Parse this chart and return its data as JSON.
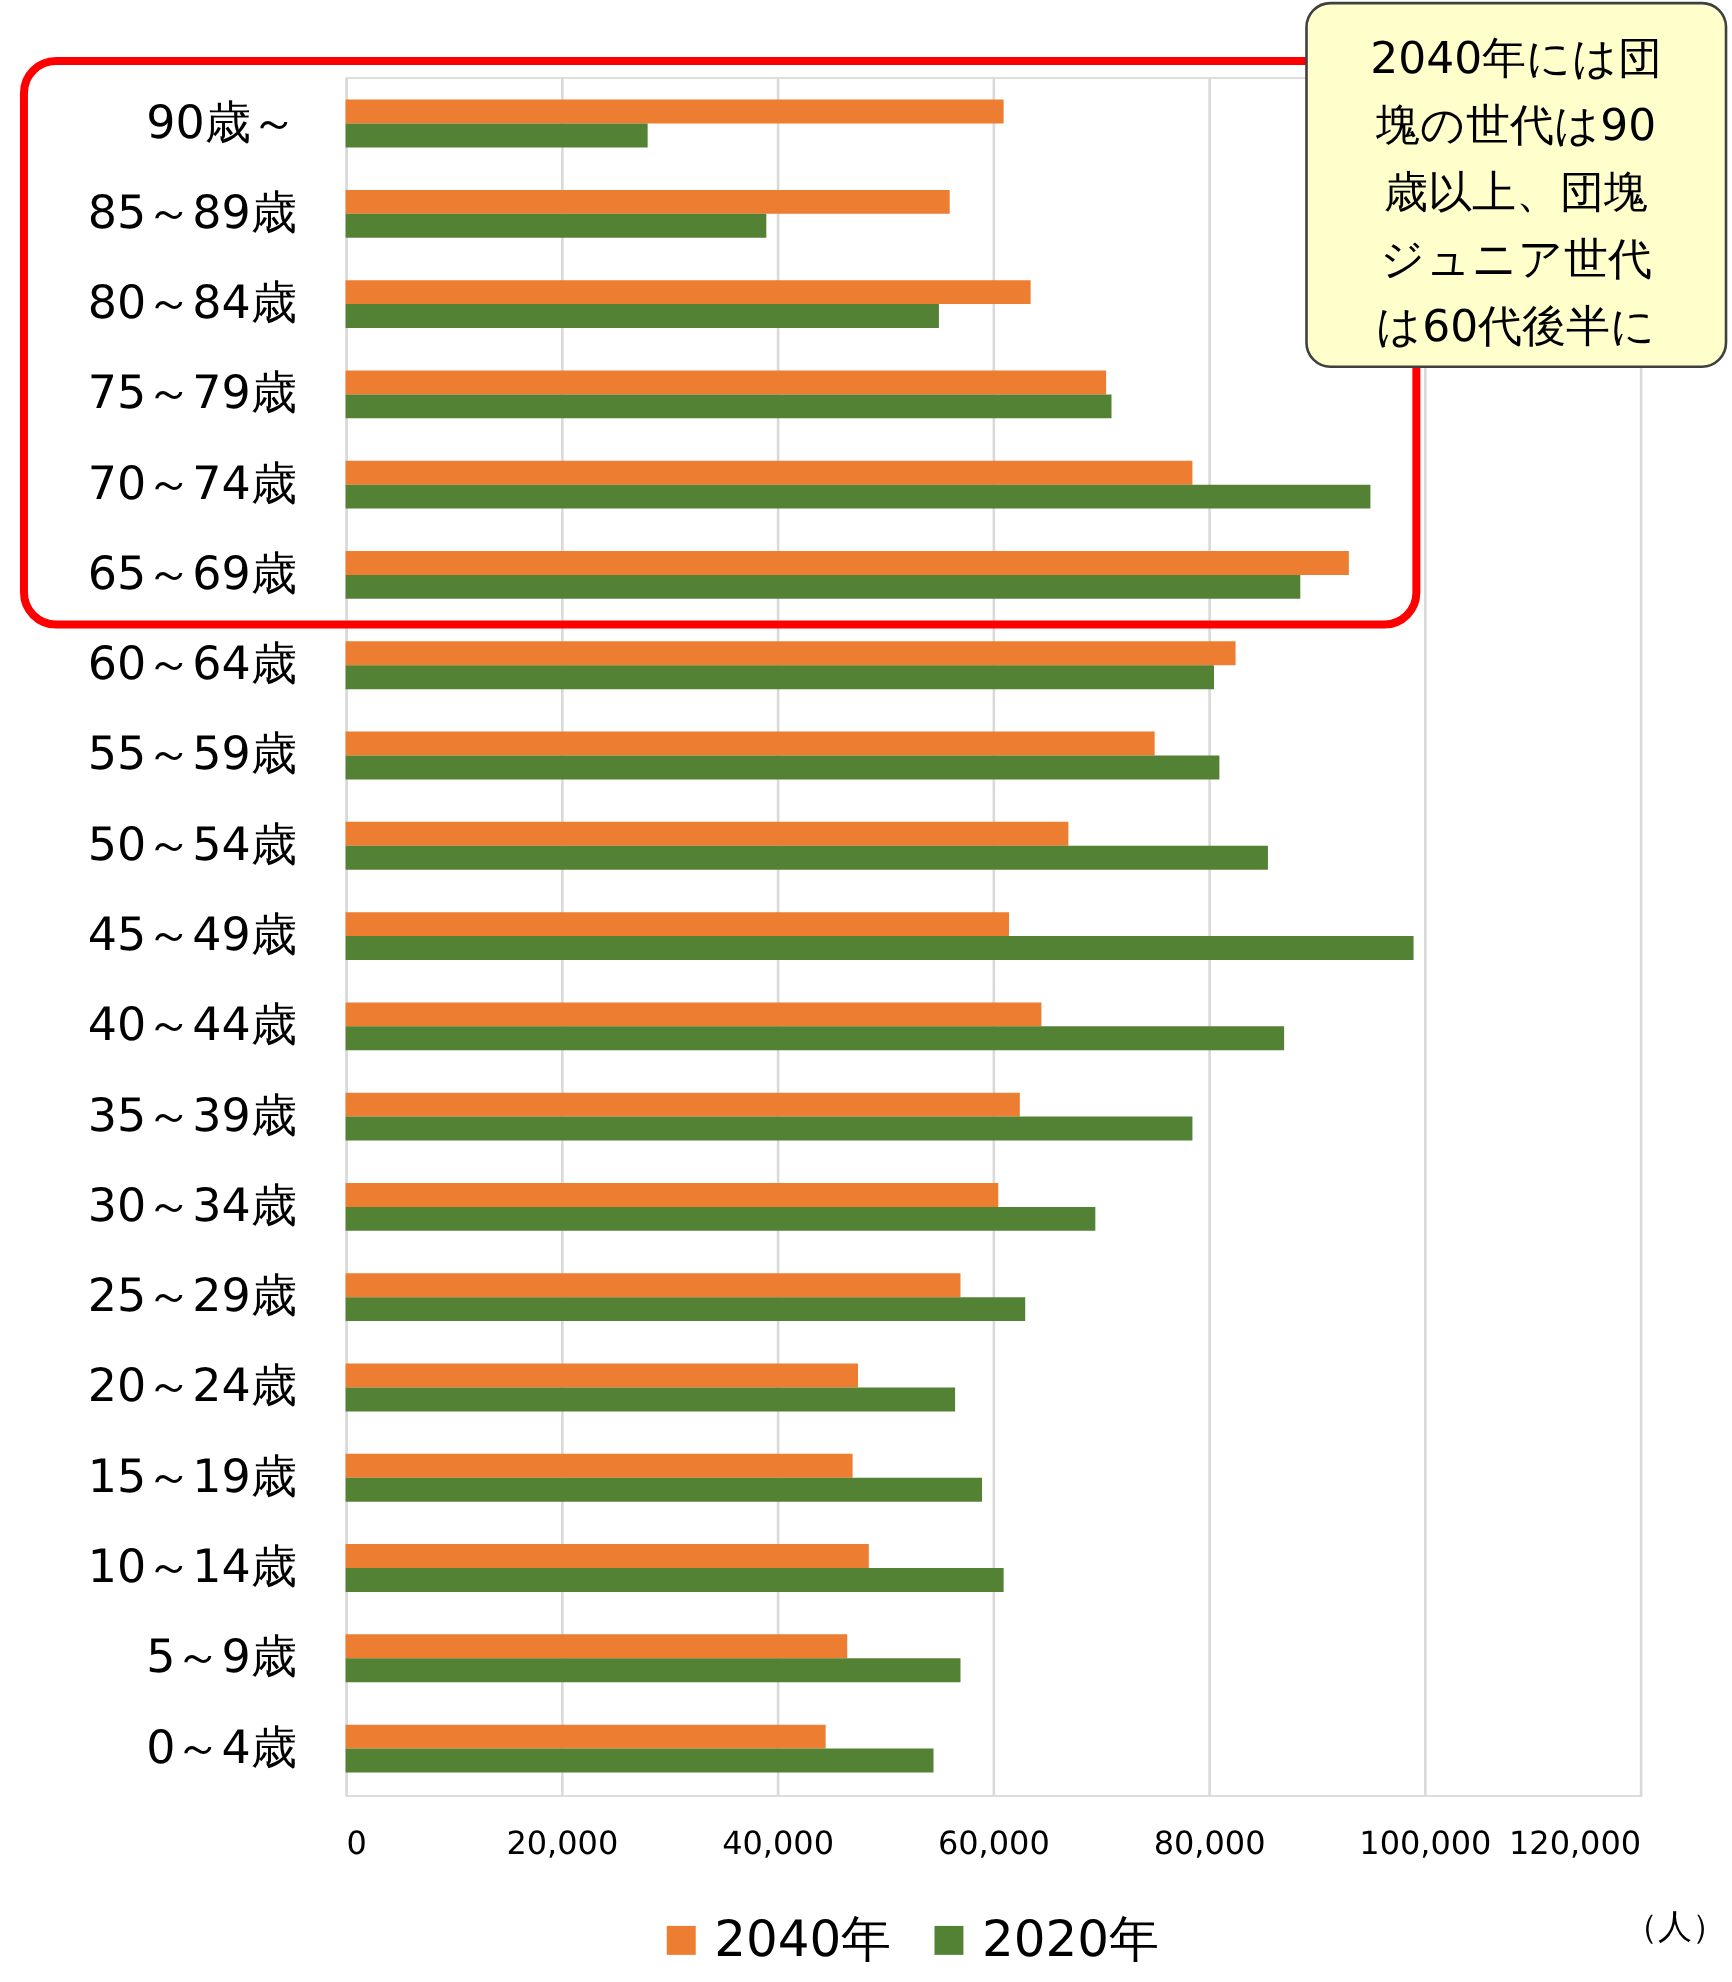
{
  "chart_data": {
    "type": "bar",
    "orientation": "horizontal",
    "categories": [
      "90歳～",
      "85～89歳",
      "80～84歳",
      "75～79歳",
      "70～74歳",
      "65～69歳",
      "60～64歳",
      "55～59歳",
      "50～54歳",
      "45～49歳",
      "40～44歳",
      "35～39歳",
      "30～34歳",
      "25～29歳",
      "20～24歳",
      "15～19歳",
      "10～14歳",
      "5～9歳",
      "0～4歳"
    ],
    "series": [
      {
        "name": "2040年",
        "color": "#ed7d31",
        "values": [
          61000,
          56000,
          63500,
          70500,
          78500,
          93000,
          82500,
          75000,
          67000,
          61500,
          64500,
          62500,
          60500,
          57000,
          47500,
          47000,
          48500,
          46500,
          44500
        ]
      },
      {
        "name": "2020年",
        "color": "#548235",
        "values": [
          28000,
          39000,
          55000,
          71000,
          95000,
          88500,
          80500,
          81000,
          85500,
          99000,
          87000,
          78500,
          69500,
          63000,
          56500,
          59000,
          61000,
          57000,
          54500
        ]
      }
    ],
    "xlim": [
      0,
      120000
    ],
    "xticks": [
      0,
      {
        "value": 20000,
        "label": "20,000"
      },
      {
        "value": 40000,
        "label": "40,000"
      },
      {
        "value": 60000,
        "label": "60,000"
      },
      {
        "value": 80000,
        "label": "80,000"
      },
      {
        "value": 100000,
        "label": "100,000"
      },
      {
        "value": 120000,
        "label": "120,000"
      }
    ],
    "xlabel": "（人）",
    "grid": "x",
    "legend": "bottom",
    "annotations": [
      "2040年には団塊の世代は90歳以上、団塊ジュニア世代は60代後半に"
    ]
  }
}
